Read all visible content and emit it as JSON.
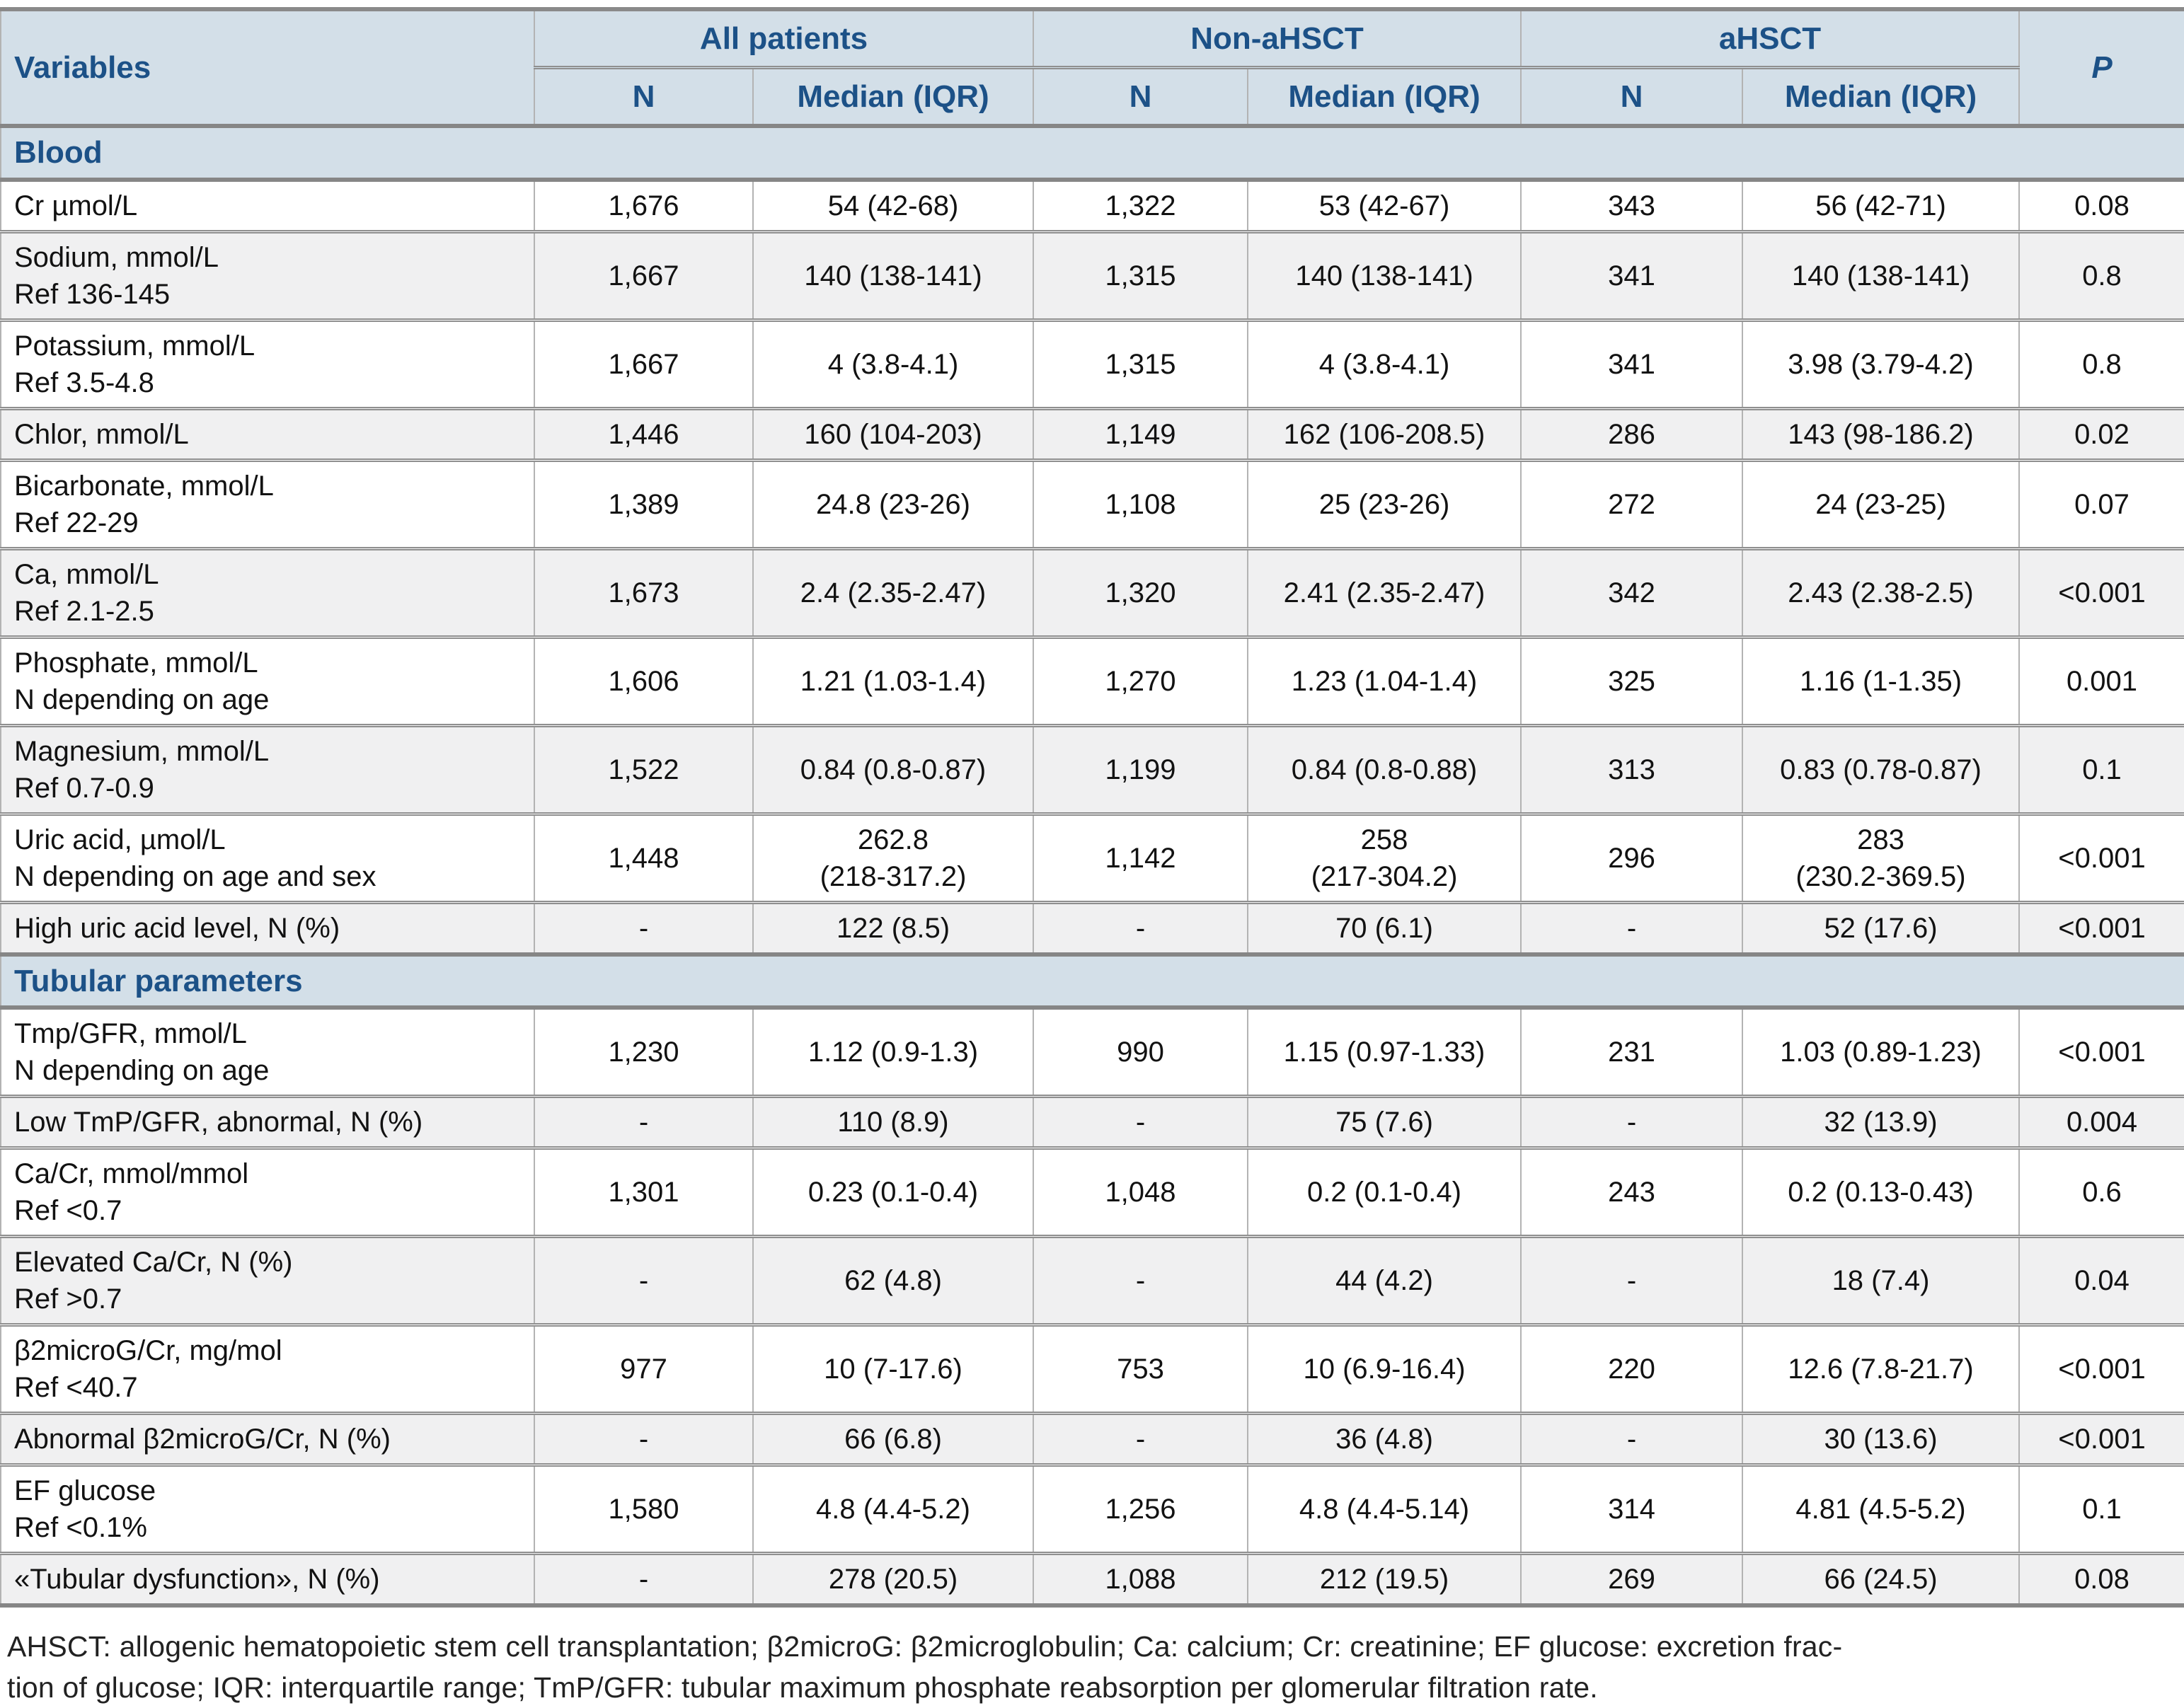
{
  "table": {
    "header": {
      "variables": "Variables",
      "groups": [
        {
          "label": "All patients"
        },
        {
          "label": "Non-aHSCT"
        },
        {
          "label": "aHSCT"
        }
      ],
      "sub_n": "N",
      "sub_median": "Median (IQR)",
      "p": "P"
    },
    "sections": [
      {
        "title": "Blood",
        "rows": [
          {
            "label": "Cr µmol/L",
            "cells": [
              "1,676",
              "54 (42-68)",
              "1,322",
              "53 (42-67)",
              "343",
              "56 (42-71)",
              "0.08"
            ]
          },
          {
            "label": "Sodium, mmol/L\nRef 136-145",
            "cells": [
              "1,667",
              "140 (138-141)",
              "1,315",
              "140 (138-141)",
              "341",
              "140 (138-141)",
              "0.8"
            ]
          },
          {
            "label": "Potassium, mmol/L\nRef 3.5-4.8",
            "cells": [
              "1,667",
              "4 (3.8-4.1)",
              "1,315",
              "4 (3.8-4.1)",
              "341",
              "3.98 (3.79-4.2)",
              "0.8"
            ]
          },
          {
            "label": "Chlor, mmol/L",
            "cells": [
              "1,446",
              "160 (104-203)",
              "1,149",
              "162 (106-208.5)",
              "286",
              "143 (98-186.2)",
              "0.02"
            ]
          },
          {
            "label": "Bicarbonate, mmol/L\nRef 22-29",
            "cells": [
              "1,389",
              "24.8 (23-26)",
              "1,108",
              "25 (23-26)",
              "272",
              "24 (23-25)",
              "0.07"
            ]
          },
          {
            "label": "Ca, mmol/L\nRef 2.1-2.5",
            "cells": [
              "1,673",
              "2.4 (2.35-2.47)",
              "1,320",
              "2.41 (2.35-2.47)",
              "342",
              "2.43 (2.38-2.5)",
              "<0.001"
            ]
          },
          {
            "label": "Phosphate, mmol/L\nN depending on age",
            "cells": [
              "1,606",
              "1.21 (1.03-1.4)",
              "1,270",
              "1.23 (1.04-1.4)",
              "325",
              "1.16 (1-1.35)",
              "0.001"
            ]
          },
          {
            "label": "Magnesium, mmol/L\nRef 0.7-0.9",
            "cells": [
              "1,522",
              "0.84 (0.8-0.87)",
              "1,199",
              "0.84 (0.8-0.88)",
              "313",
              "0.83 (0.78-0.87)",
              "0.1"
            ]
          },
          {
            "label": "Uric acid, µmol/L\nN depending on age and sex",
            "cells": [
              "1,448",
              "262.8\n(218-317.2)",
              "1,142",
              "258\n(217-304.2)",
              "296",
              "283\n(230.2-369.5)",
              "<0.001"
            ]
          },
          {
            "label": "High uric acid level, N (%)",
            "cells": [
              "-",
              "122 (8.5)",
              "-",
              "70 (6.1)",
              "-",
              "52 (17.6)",
              "<0.001"
            ]
          }
        ]
      },
      {
        "title": "Tubular parameters",
        "rows": [
          {
            "label": "Tmp/GFR, mmol/L\nN depending on age",
            "cells": [
              "1,230",
              "1.12 (0.9-1.3)",
              "990",
              "1.15 (0.97-1.33)",
              "231",
              "1.03 (0.89-1.23)",
              "<0.001"
            ]
          },
          {
            "label": "Low TmP/GFR, abnormal, N (%)",
            "cells": [
              "-",
              "110 (8.9)",
              "-",
              "75 (7.6)",
              "-",
              "32 (13.9)",
              "0.004"
            ]
          },
          {
            "label": "Ca/Cr, mmol/mmol\nRef <0.7",
            "cells": [
              "1,301",
              "0.23 (0.1-0.4)",
              "1,048",
              "0.2 (0.1-0.4)",
              "243",
              "0.2 (0.13-0.43)",
              "0.6"
            ]
          },
          {
            "label": "Elevated Ca/Cr, N (%)\nRef >0.7",
            "cells": [
              "-",
              "62 (4.8)",
              "-",
              "44 (4.2)",
              "-",
              "18 (7.4)",
              "0.04"
            ]
          },
          {
            "label": "β2microG/Cr, mg/mol\nRef <40.7",
            "cells": [
              "977",
              "10 (7-17.6)",
              "753",
              "10 (6.9-16.4)",
              "220",
              "12.6 (7.8-21.7)",
              "<0.001"
            ]
          },
          {
            "label": "Abnormal β2microG/Cr, N (%)",
            "cells": [
              "-",
              "66 (6.8)",
              "-",
              "36 (4.8)",
              "-",
              "30 (13.6)",
              "<0.001"
            ]
          },
          {
            "label": "EF glucose\nRef <0.1%",
            "cells": [
              "1,580",
              "4.8 (4.4-5.2)",
              "1,256",
              "4.8 (4.4-5.14)",
              "314",
              "4.81 (4.5-5.2)",
              "0.1"
            ]
          },
          {
            "label": "«Tubular dysfunction», N (%)",
            "cells": [
              "-",
              "278 (20.5)",
              "1,088",
              "212 (19.5)",
              "269",
              "66 (24.5)",
              "0.08"
            ]
          }
        ]
      }
    ]
  },
  "footnote": "AHSCT: allogenic hematopoietic stem cell transplantation; β2microG: β2microglobulin; Ca: calcium; Cr: creatinine; EF glucose: excretion frac-\ntion of glucose; IQR: interquartile range; TmP/GFR: tubular maximum phosphate reabsorption per glomerular filtration rate."
}
